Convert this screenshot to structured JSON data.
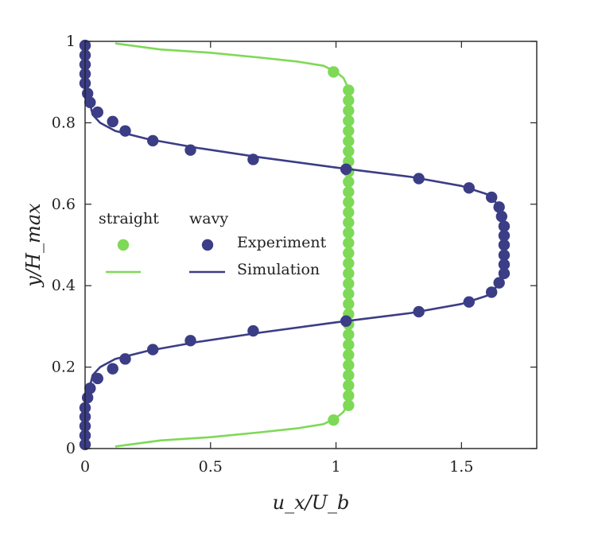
{
  "chart_data": {
    "type": "line+scatter",
    "xlabel": "u_x/U_b",
    "ylabel": "y/H_max",
    "xlim": [
      0,
      1.8
    ],
    "ylim": [
      0,
      1
    ],
    "xticks": [
      "0",
      "0.5",
      "1",
      "1.5"
    ],
    "xtick_values": [
      0,
      0.5,
      1,
      1.5
    ],
    "yticks": [
      "0",
      "0.2",
      "0.4",
      "0.6",
      "0.8",
      "1"
    ],
    "ytick_values": [
      0,
      0.2,
      0.4,
      0.6,
      0.8,
      1
    ],
    "legend": {
      "placement": "center-left",
      "group_labels": [
        "straight",
        "wavy"
      ],
      "entries": [
        "Experiment",
        "Simulation"
      ]
    },
    "colors": {
      "straight": "#7ed957",
      "wavy": "#3b3d86"
    },
    "series": [
      {
        "name": "straight Experiment",
        "kind": "scatter",
        "group": "straight",
        "points": [
          [
            0.99,
            0.07
          ],
          [
            1.05,
            0.106
          ],
          [
            1.05,
            0.13
          ],
          [
            1.05,
            0.155
          ],
          [
            1.05,
            0.18
          ],
          [
            1.05,
            0.205
          ],
          [
            1.05,
            0.23
          ],
          [
            1.05,
            0.255
          ],
          [
            1.05,
            0.28
          ],
          [
            1.05,
            0.305
          ],
          [
            1.05,
            0.33
          ],
          [
            1.05,
            0.355
          ],
          [
            1.05,
            0.38
          ],
          [
            1.05,
            0.405
          ],
          [
            1.05,
            0.43
          ],
          [
            1.05,
            0.455
          ],
          [
            1.05,
            0.48
          ],
          [
            1.05,
            0.505
          ],
          [
            1.05,
            0.53
          ],
          [
            1.05,
            0.555
          ],
          [
            1.05,
            0.58
          ],
          [
            1.05,
            0.605
          ],
          [
            1.05,
            0.63
          ],
          [
            1.05,
            0.655
          ],
          [
            1.05,
            0.68
          ],
          [
            1.05,
            0.705
          ],
          [
            1.05,
            0.73
          ],
          [
            1.05,
            0.755
          ],
          [
            1.05,
            0.78
          ],
          [
            1.05,
            0.805
          ],
          [
            1.05,
            0.83
          ],
          [
            1.05,
            0.855
          ],
          [
            1.05,
            0.88
          ],
          [
            0.99,
            0.925
          ]
        ]
      },
      {
        "name": "straight Simulation",
        "kind": "line",
        "group": "straight",
        "points": [
          [
            0.12,
            0.005
          ],
          [
            0.3,
            0.02
          ],
          [
            0.5,
            0.028
          ],
          [
            0.7,
            0.04
          ],
          [
            0.85,
            0.05
          ],
          [
            0.95,
            0.06
          ],
          [
            1.0,
            0.075
          ],
          [
            1.03,
            0.09
          ],
          [
            1.045,
            0.11
          ],
          [
            1.05,
            0.14
          ],
          [
            1.05,
            0.5
          ],
          [
            1.05,
            0.86
          ],
          [
            1.045,
            0.89
          ],
          [
            1.03,
            0.91
          ],
          [
            1.0,
            0.925
          ],
          [
            0.95,
            0.94
          ],
          [
            0.85,
            0.95
          ],
          [
            0.7,
            0.96
          ],
          [
            0.5,
            0.972
          ],
          [
            0.3,
            0.98
          ],
          [
            0.12,
            0.995
          ]
        ]
      },
      {
        "name": "wavy Experiment",
        "kind": "scatter",
        "group": "wavy",
        "points": [
          [
            0.0,
            0.01
          ],
          [
            0.0,
            0.032
          ],
          [
            0.0,
            0.055
          ],
          [
            0.0,
            0.078
          ],
          [
            0.0,
            0.1
          ],
          [
            0.01,
            0.125
          ],
          [
            0.02,
            0.148
          ],
          [
            0.05,
            0.172
          ],
          [
            0.11,
            0.196
          ],
          [
            0.16,
            0.22
          ],
          [
            0.27,
            0.243
          ],
          [
            0.42,
            0.265
          ],
          [
            0.67,
            0.289
          ],
          [
            1.04,
            0.313
          ],
          [
            1.33,
            0.336
          ],
          [
            1.53,
            0.36
          ],
          [
            1.62,
            0.384
          ],
          [
            1.65,
            0.407
          ],
          [
            1.67,
            0.43
          ],
          [
            1.67,
            0.452
          ],
          [
            1.67,
            0.475
          ],
          [
            1.67,
            0.5
          ],
          [
            1.67,
            0.523
          ],
          [
            1.67,
            0.546
          ],
          [
            1.66,
            0.57
          ],
          [
            1.65,
            0.593
          ],
          [
            1.62,
            0.617
          ],
          [
            1.53,
            0.64
          ],
          [
            1.33,
            0.663
          ],
          [
            1.04,
            0.686
          ],
          [
            0.67,
            0.71
          ],
          [
            0.42,
            0.733
          ],
          [
            0.27,
            0.756
          ],
          [
            0.16,
            0.78
          ],
          [
            0.11,
            0.803
          ],
          [
            0.05,
            0.826
          ],
          [
            0.02,
            0.85
          ],
          [
            0.01,
            0.872
          ],
          [
            0.0,
            0.897
          ],
          [
            0.0,
            0.92
          ],
          [
            0.0,
            0.943
          ],
          [
            0.0,
            0.966
          ],
          [
            0.0,
            0.99
          ]
        ]
      },
      {
        "name": "wavy Simulation",
        "kind": "line",
        "group": "wavy",
        "points": [
          [
            0.0,
            0.0
          ],
          [
            0.0,
            0.08
          ],
          [
            0.01,
            0.13
          ],
          [
            0.03,
            0.18
          ],
          [
            0.06,
            0.2
          ],
          [
            0.12,
            0.22
          ],
          [
            0.25,
            0.24
          ],
          [
            0.45,
            0.262
          ],
          [
            0.7,
            0.285
          ],
          [
            1.0,
            0.31
          ],
          [
            1.3,
            0.333
          ],
          [
            1.5,
            0.355
          ],
          [
            1.6,
            0.375
          ],
          [
            1.645,
            0.4
          ],
          [
            1.66,
            0.43
          ],
          [
            1.665,
            0.5
          ],
          [
            1.66,
            0.57
          ],
          [
            1.645,
            0.6
          ],
          [
            1.6,
            0.625
          ],
          [
            1.5,
            0.645
          ],
          [
            1.3,
            0.667
          ],
          [
            1.0,
            0.69
          ],
          [
            0.7,
            0.715
          ],
          [
            0.45,
            0.738
          ],
          [
            0.25,
            0.76
          ],
          [
            0.12,
            0.78
          ],
          [
            0.06,
            0.8
          ],
          [
            0.03,
            0.82
          ],
          [
            0.01,
            0.87
          ],
          [
            0.0,
            0.92
          ],
          [
            0.0,
            1.0
          ]
        ]
      }
    ]
  }
}
